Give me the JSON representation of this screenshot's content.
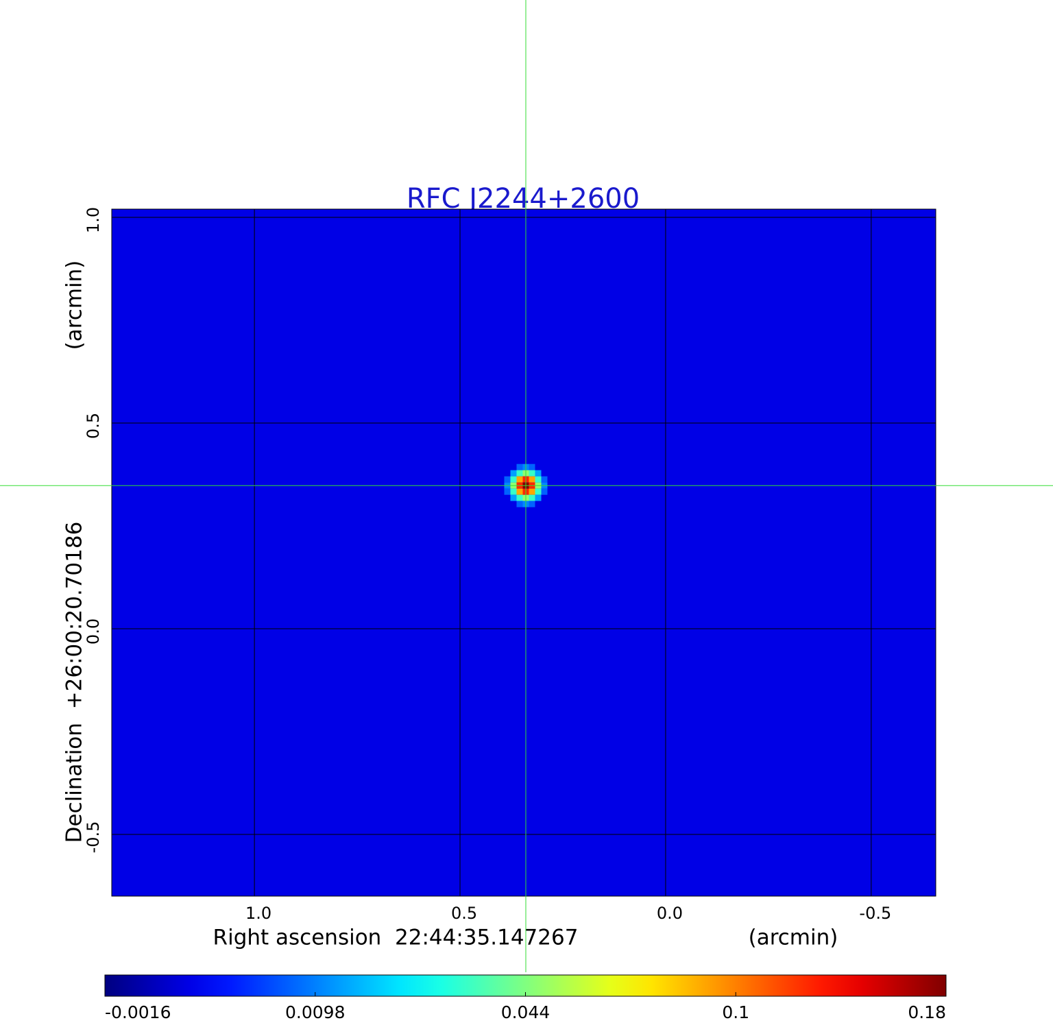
{
  "chart_data": {
    "type": "image",
    "title": "RFC J2244+2600",
    "xlabel": "Right ascension  22:44:35.147267",
    "xunit": "(arcmin)",
    "ylabel": "Declination  +26:00:20.70186",
    "yunit": "(arcmin)",
    "xlim": [
      1.347,
      -0.657
    ],
    "ylim": [
      -0.65,
      1.02
    ],
    "xticks": [
      {
        "value": 1,
        "label": "1.0"
      },
      0.5,
      {
        "value": 0,
        "label": "0.0"
      },
      -0.5
    ],
    "yticks": [
      {
        "value": 1,
        "label": "1.0"
      },
      0.5,
      {
        "value": 0,
        "label": "0.0"
      },
      -0.5
    ],
    "grid": true,
    "colormap": "jet",
    "colorbar": {
      "ticks": [
        -0.0016,
        0.0098,
        0.044,
        0.1,
        0.18
      ]
    },
    "background": 0.003,
    "source": {
      "x": 0.34,
      "y": 0.348,
      "peak": 0.18
    },
    "crosshair_color": "#33dd33",
    "title_color": "#1a1acd"
  }
}
